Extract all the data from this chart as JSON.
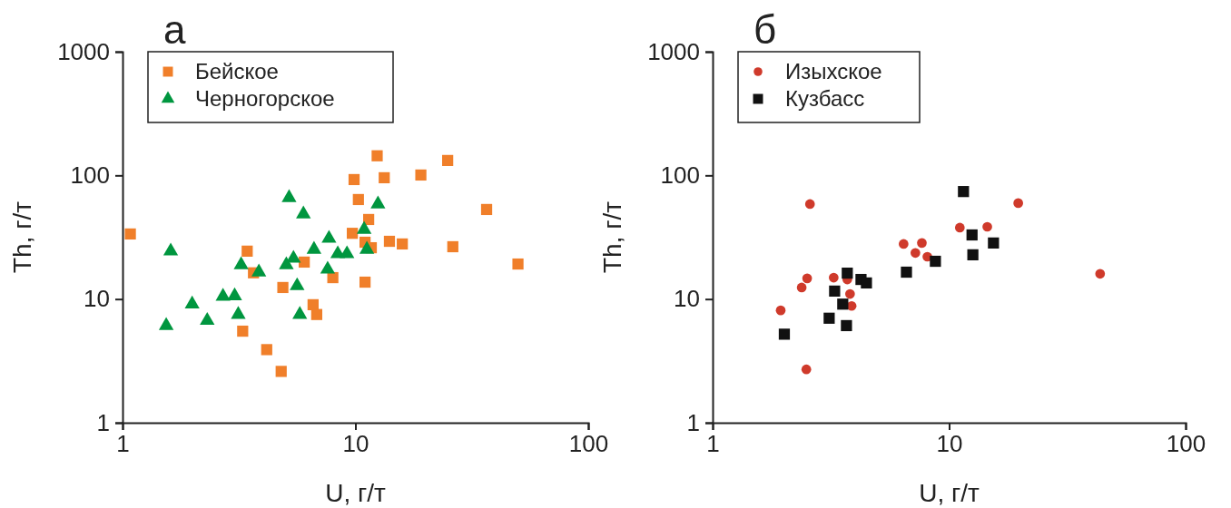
{
  "chart_data": [
    {
      "type": "scatter",
      "title": "а",
      "xlabel": "U, г/т",
      "ylabel": "Th, г/т",
      "log": "xy",
      "xlim": [
        1,
        100
      ],
      "ylim": [
        1,
        1000
      ],
      "xticks": [
        1,
        10,
        100
      ],
      "yticks": [
        1,
        10,
        100,
        1000
      ],
      "legend": "top left",
      "series": [
        {
          "name": "Бейское",
          "color": "#f07f2a",
          "marker": "square",
          "x": [
            1.08,
            3.43,
            3.65,
            4.88,
            3.28,
            4.16,
            4.8,
            12.4,
            24.9,
            9.87,
            13.3,
            19.1,
            10.3,
            36.6,
            11.4,
            9.7,
            11,
            11.7,
            14,
            15.9,
            26.2,
            49.9,
            6.03,
            8,
            11,
            6.58,
            6.82
          ],
          "values": [
            33.6,
            24.4,
            16.3,
            12.4,
            5.5,
            3.9,
            2.6,
            144,
            132,
            92.5,
            95.7,
            100.7,
            63.8,
            53,
            44,
            34,
            28.8,
            26,
            29.3,
            27.9,
            26.5,
            19.2,
            19.9,
            14.9,
            13.7,
            9,
            7.5
          ]
        },
        {
          "name": "Черногорское",
          "color": "#00963f",
          "marker": "triangle",
          "x": [
            5.19,
            1.61,
            3.23,
            3.85,
            5.05,
            5.42,
            1.99,
            2.7,
            3.03,
            2.31,
            3.14,
            1.54,
            5.62,
            5.77,
            5.98,
            12.5,
            10.9,
            11.2,
            7.7,
            6.64,
            8.4,
            9.2,
            7.6
          ],
          "values": [
            66,
            24.4,
            18.9,
            16.5,
            18.9,
            21.3,
            9.1,
            10.5,
            10.6,
            6.7,
            7.5,
            6.1,
            12.8,
            7.5,
            48.7,
            58.6,
            36.5,
            25.2,
            30.9,
            25.2,
            23.2,
            23.2,
            17.4
          ]
        }
      ]
    },
    {
      "type": "scatter",
      "title": "б",
      "xlabel": "U, г/т",
      "ylabel": "Th, г/т",
      "log": "xy",
      "xlim": [
        1,
        100
      ],
      "ylim": [
        1,
        1000
      ],
      "xticks": [
        1,
        10,
        100
      ],
      "yticks": [
        1,
        10,
        100,
        1000
      ],
      "legend": "top left",
      "series": [
        {
          "name": "Изыхское",
          "color": "#cf3a2b",
          "marker": "circle",
          "x": [
            2.58,
            6.42,
            7.67,
            7.2,
            8.09,
            2.51,
            2.38,
            3.25,
            3.71,
            3.81,
            3.87,
            1.94,
            2.49,
            19.6,
            11.1,
            14.5,
            43.5
          ],
          "values": [
            58.6,
            27.9,
            28.4,
            23.6,
            22,
            14.7,
            12.4,
            14.9,
            14.4,
            11,
            8.8,
            8.1,
            2.7,
            59.7,
            37.8,
            38.4,
            16
          ]
        },
        {
          "name": "Кузбасс",
          "color": "#111111",
          "marker": "square",
          "x": [
            8.75,
            6.6,
            3.71,
            4.24,
            4.47,
            3.28,
            3.55,
            3.11,
            3.68,
            2.01,
            11.5,
            12.5,
            15.4,
            12.6
          ],
          "values": [
            20.2,
            16.5,
            16.2,
            14.4,
            13.5,
            11.6,
            9.1,
            7,
            6.1,
            5.2,
            74,
            33,
            28.4,
            22.8
          ]
        }
      ]
    }
  ]
}
